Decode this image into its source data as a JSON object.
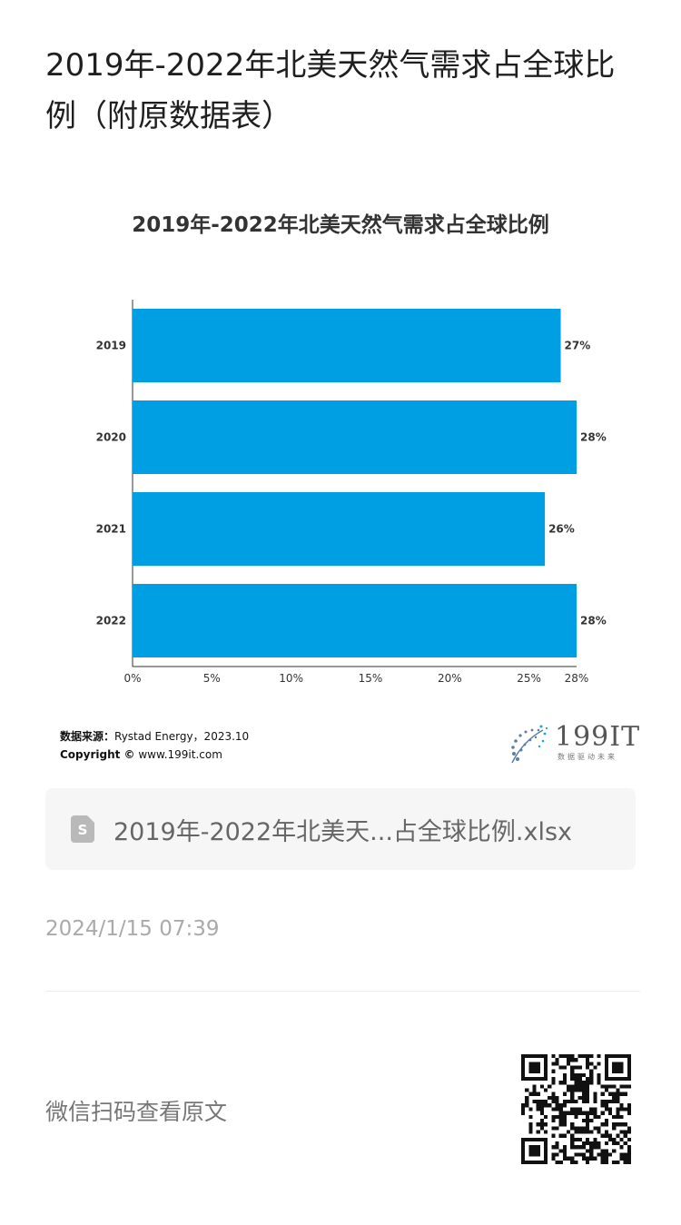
{
  "page": {
    "title": "2019年-2022年北美天然气需求占全球比例（附原数据表）",
    "source_label": "数据来源：",
    "source_value": "Rystad Energy，2023.10",
    "copyright_label": "Copyright ©",
    "copyright_value": " www.199it.com",
    "logo_text": "199IT",
    "logo_sub": "数据驱动未来",
    "file_name": "2019年-2022年北美天...占全球比例.xlsx",
    "file_icon_letter": "S",
    "timestamp": "2024/1/15 07:39",
    "wechat_text": "微信扫码查看原文"
  },
  "chart_data": {
    "type": "bar",
    "orientation": "horizontal",
    "title": "2019年-2022年北美天然气需求占全球比例",
    "categories": [
      "2019",
      "2020",
      "2021",
      "2022"
    ],
    "values": [
      27,
      28,
      26,
      28
    ],
    "value_labels": [
      "27%",
      "28%",
      "26%",
      "28%"
    ],
    "x_ticks": [
      0,
      5,
      10,
      15,
      20,
      25,
      28
    ],
    "x_tick_labels": [
      "0%",
      "5%",
      "10%",
      "15%",
      "20%",
      "25%",
      "28%"
    ],
    "xlim": [
      0,
      28
    ],
    "bar_color": "#009fe3",
    "grid": false
  }
}
